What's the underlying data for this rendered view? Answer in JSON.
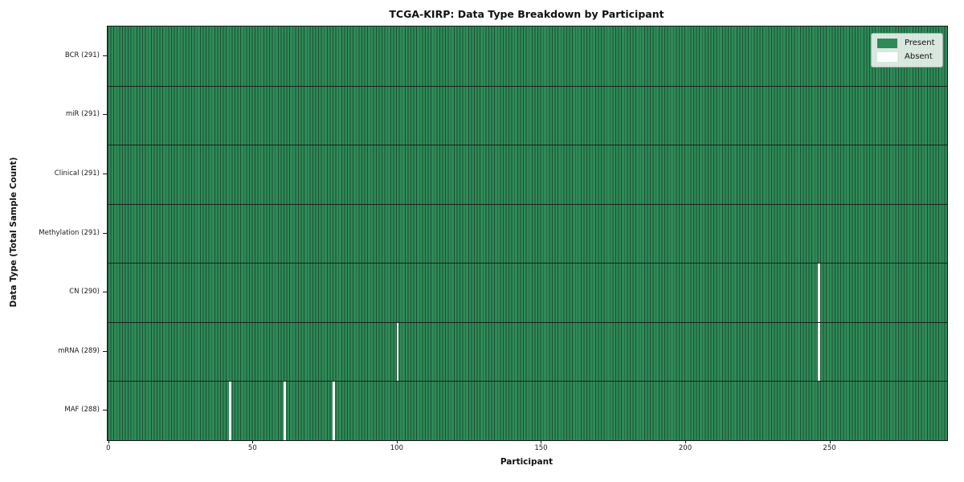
{
  "chart_data": {
    "type": "heatmap",
    "title": "TCGA-KIRP: Data Type Breakdown by Participant",
    "xlabel": "Participant",
    "ylabel": "Data Type (Total Sample Count)",
    "n_participants": 291,
    "xlim": [
      -0.5,
      290.5
    ],
    "x_ticks": [
      0,
      50,
      100,
      150,
      200,
      250
    ],
    "rows": [
      {
        "label": "BCR (291)",
        "total": 291,
        "absent_participants": []
      },
      {
        "label": "miR (291)",
        "total": 291,
        "absent_participants": []
      },
      {
        "label": "Clinical (291)",
        "total": 291,
        "absent_participants": []
      },
      {
        "label": "Methylation (291)",
        "total": 291,
        "absent_participants": []
      },
      {
        "label": "CN (290)",
        "total": 290,
        "absent_participants": [
          246
        ]
      },
      {
        "label": "mRNA (289)",
        "total": 289,
        "absent_participants": [
          100,
          246
        ]
      },
      {
        "label": "MAF (288)",
        "total": 288,
        "absent_participants": [
          42,
          61,
          78
        ]
      }
    ],
    "legend": [
      {
        "label": "Present",
        "color": "#2e8b57"
      },
      {
        "label": "Absent",
        "color": "#ffffff"
      }
    ],
    "colors": {
      "present": "#2e8b57",
      "bar_edge": "#1d4e35",
      "absent": "#ffffff",
      "separator": "#17231c"
    },
    "legend_position": "upper right",
    "grid": false
  }
}
